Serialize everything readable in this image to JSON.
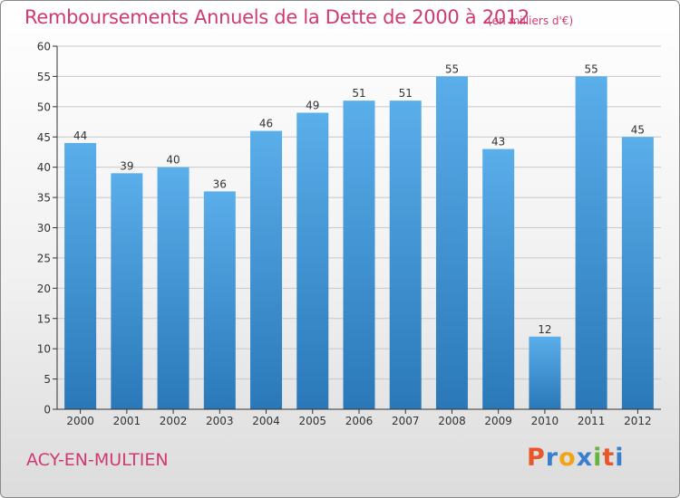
{
  "title": "Remboursements Annuels de la Dette de 2000 à 2012",
  "unit": "(en milliers d'€)",
  "commune": "ACY-EN-MULTIEN",
  "logo": {
    "letters": [
      "P",
      "r",
      "o",
      "x",
      "i",
      "t",
      "i"
    ],
    "colors": [
      "#e8572a",
      "#3a7fcf",
      "#f2a316",
      "#3a7fcf",
      "#69b43a",
      "#e8572a",
      "#3a7fcf"
    ]
  },
  "colors": {
    "bar_top": "#5aaeea",
    "bar_bottom": "#2a78b8",
    "title": "#d03a72",
    "axis": "#333333",
    "grid": "#c8c8c8"
  },
  "chart_data": {
    "type": "bar",
    "categories": [
      "2000",
      "2001",
      "2002",
      "2003",
      "2004",
      "2005",
      "2006",
      "2007",
      "2008",
      "2009",
      "2010",
      "2011",
      "2012"
    ],
    "values": [
      44,
      39,
      40,
      36,
      46,
      49,
      51,
      51,
      55,
      43,
      12,
      55,
      45
    ],
    "ylim": [
      0,
      60
    ],
    "yticks": [
      0,
      5,
      10,
      15,
      20,
      25,
      30,
      35,
      40,
      45,
      50,
      55,
      60
    ],
    "grid": true,
    "data_labels": true
  }
}
